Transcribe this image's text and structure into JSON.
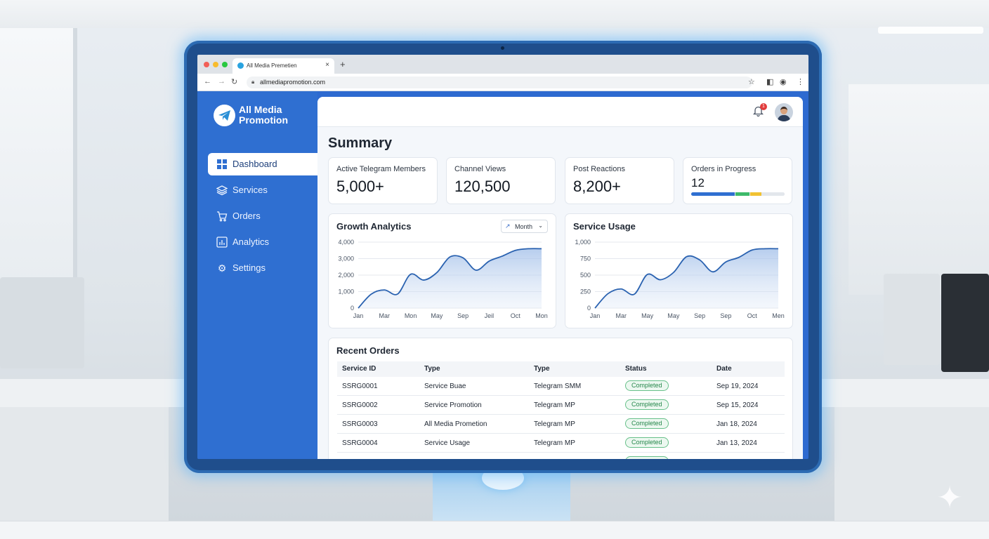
{
  "browser": {
    "tab_title": "All Media Premetien",
    "url": "allmediapromotion.com"
  },
  "brand": {
    "line1": "All Media",
    "line2": "Promotion"
  },
  "sidebar": {
    "items": [
      {
        "label": "Dashboard",
        "icon": "dashboard-grid-icon",
        "active": true
      },
      {
        "label": "Services",
        "icon": "layers-icon",
        "active": false
      },
      {
        "label": "Orders",
        "icon": "cart-icon",
        "active": false
      },
      {
        "label": "Analytics",
        "icon": "bar-chart-icon",
        "active": false
      },
      {
        "label": "Settings",
        "icon": "gear-icon",
        "active": false
      }
    ]
  },
  "header": {
    "notification_count": "1"
  },
  "summary": {
    "title": "Summary",
    "stats": [
      {
        "label": "Active Telegram Members",
        "value": "5,000+"
      },
      {
        "label": "Channel Views",
        "value": "120,500"
      },
      {
        "label": "Post Reactions",
        "value": "8,200+"
      },
      {
        "label": "Orders in Progress",
        "value": "12"
      }
    ],
    "progress_segments": [
      {
        "fraction": 0.47,
        "color": "#2f6fd1"
      },
      {
        "fraction": 0.16,
        "color": "#3dba6a"
      },
      {
        "fraction": 0.13,
        "color": "#f1c232"
      },
      {
        "fraction": 0.24,
        "color": "#e3e7ec"
      }
    ]
  },
  "growth": {
    "title": "Growth Analytics",
    "range_label": "Month"
  },
  "usage": {
    "title": "Service Usage"
  },
  "chart_data": [
    {
      "type": "area",
      "title": "Growth Analytics",
      "categories": [
        "Jan",
        "Mar",
        "Mon",
        "May",
        "Sep",
        "Jeil",
        "Oct",
        "Mon"
      ],
      "y_ticks": [
        "4,000",
        "3,000",
        "2,000",
        "1,000",
        "0"
      ],
      "ylim": [
        0,
        4000
      ],
      "x": [
        0,
        0.5,
        1,
        1.5,
        2,
        2.5,
        3,
        3.5,
        4,
        4.5,
        5,
        5.5,
        6,
        6.5,
        7
      ],
      "values": [
        0,
        850,
        1100,
        850,
        2050,
        1700,
        2150,
        3100,
        3050,
        2300,
        2850,
        3150,
        3500,
        3600,
        3600
      ],
      "grid": true,
      "color": "#2a62b0"
    },
    {
      "type": "area",
      "title": "Service Usage",
      "categories": [
        "Jan",
        "Mar",
        "May",
        "May",
        "Sep",
        "Sep",
        "Oct",
        "Men"
      ],
      "y_ticks": [
        "1,000",
        "750",
        "500",
        "250",
        "0"
      ],
      "ylim": [
        0,
        1000
      ],
      "x": [
        0,
        0.5,
        1,
        1.5,
        2,
        2.5,
        3,
        3.5,
        4,
        4.5,
        5,
        5.5,
        6,
        6.5,
        7
      ],
      "values": [
        0,
        220,
        290,
        210,
        510,
        430,
        540,
        780,
        730,
        550,
        700,
        770,
        880,
        900,
        900
      ],
      "grid": true,
      "color": "#2a62b0"
    }
  ],
  "orders": {
    "title": "Recent Orders",
    "columns": [
      "Service ID",
      "Type",
      "Type",
      "Status",
      "Date"
    ],
    "rows": [
      {
        "id": "SSRG0001",
        "type1": "Service Buae",
        "type2": "Telegram SMM",
        "status": "Completed",
        "date": "Sep 19, 2024"
      },
      {
        "id": "SSRG0002",
        "type1": "Service Promotion",
        "type2": "Telegram MP",
        "status": "Completed",
        "date": "Sep 15, 2024"
      },
      {
        "id": "SSRG0003",
        "type1": "All Media Prometion",
        "type2": "Telegram MP",
        "status": "Completed",
        "date": "Jan 18, 2024"
      },
      {
        "id": "SSRG0004",
        "type1": "Service Usage",
        "type2": "Telegram MP",
        "status": "Completed",
        "date": "Jan 13, 2024"
      }
    ]
  }
}
